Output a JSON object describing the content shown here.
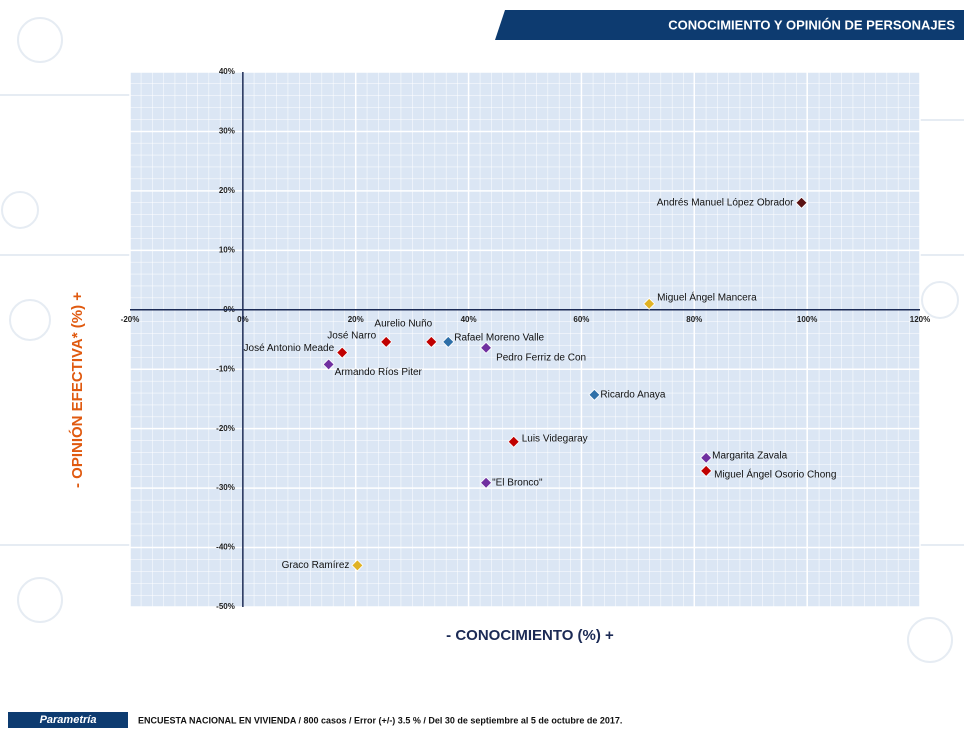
{
  "header": {
    "title": "CONOCIMIENTO  Y OPINIÓN  DE PERSONAJES"
  },
  "chart_data": {
    "type": "scatter",
    "xlabel": "- CONOCIMIENTO (%) +",
    "ylabel": "- OPINIÓN EFECTIVA* (%) +",
    "xlim": [
      -20,
      120
    ],
    "ylim": [
      -50,
      40
    ],
    "xticks": [
      {
        "value": -20,
        "label": "-20%"
      },
      {
        "value": 0,
        "label": "0%"
      },
      {
        "value": 20,
        "label": "20%"
      },
      {
        "value": 40,
        "label": "40%"
      },
      {
        "value": 60,
        "label": "60%"
      },
      {
        "value": 80,
        "label": "80%"
      },
      {
        "value": 100,
        "label": "100%"
      },
      {
        "value": 120,
        "label": "120%"
      }
    ],
    "yticks": [
      {
        "value": 40,
        "label": "40%"
      },
      {
        "value": 30,
        "label": "30%"
      },
      {
        "value": 20,
        "label": "20%"
      },
      {
        "value": 10,
        "label": "10%"
      },
      {
        "value": 0,
        "label": "0%"
      },
      {
        "value": -10,
        "label": "-10%"
      },
      {
        "value": -20,
        "label": "-20%"
      },
      {
        "value": -30,
        "label": "-30%"
      },
      {
        "value": -40,
        "label": "-40%"
      },
      {
        "value": -50,
        "label": "-50%"
      }
    ],
    "grid": true,
    "points": [
      {
        "name": "Andrés Manuel López Obrador",
        "x": 99,
        "y": 18,
        "color": "#5a1212"
      },
      {
        "name": "Miguel Ángel Mancera",
        "x": 72,
        "y": 1,
        "color": "#e0b224"
      },
      {
        "name": "José Antonio Meade",
        "x": 17.6,
        "y": -7.2,
        "color": "#c00000"
      },
      {
        "name": "José Narro",
        "x": 25.4,
        "y": -5.4,
        "color": "#c00000"
      },
      {
        "name": "Aurelio Nuño",
        "x": 33.4,
        "y": -5.4,
        "color": "#c00000"
      },
      {
        "name": "Rafael Moreno Valle",
        "x": 36.4,
        "y": -5.4,
        "color": "#2e6fa8"
      },
      {
        "name": "Pedro Ferriz de Con",
        "x": 43.1,
        "y": -6.4,
        "color": "#7030a0"
      },
      {
        "name": "Armando Ríos Piter",
        "x": 15.2,
        "y": -9.2,
        "color": "#7030a0"
      },
      {
        "name": "Ricardo Anaya",
        "x": 62.3,
        "y": -14.3,
        "color": "#2e6fa8"
      },
      {
        "name": "Luis Videgaray",
        "x": 48,
        "y": -22.2,
        "color": "#c00000"
      },
      {
        "name": "\"El Bronco\"",
        "x": 43.1,
        "y": -29.1,
        "color": "#7030a0"
      },
      {
        "name": "Margarita Zavala",
        "x": 82.1,
        "y": -24.9,
        "color": "#7030a0"
      },
      {
        "name": "Miguel Ángel Osorio Chong",
        "x": 82.1,
        "y": -27.1,
        "color": "#c00000"
      },
      {
        "name": "Graco Ramírez",
        "x": 20.3,
        "y": -43,
        "color": "#e0b224"
      }
    ]
  },
  "footer": {
    "brand": "Parametría",
    "note": "ENCUESTA  NACIONAL EN VIVIENDA  / 800 casos / Error (+/-)  3.5 % / Del 30 de septiembre al 5 de octubre de 2017."
  }
}
